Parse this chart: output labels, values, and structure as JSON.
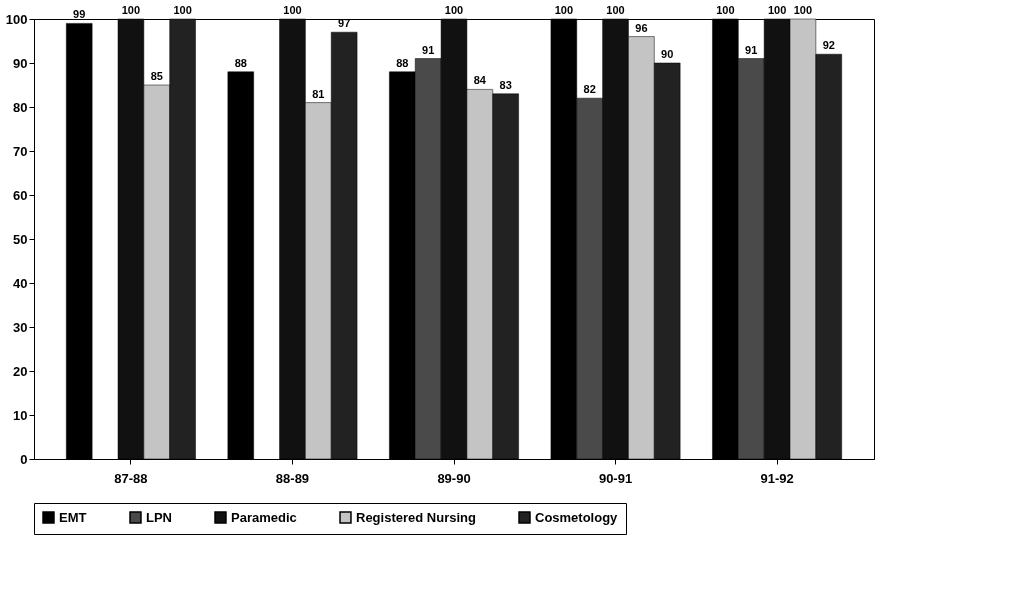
{
  "chart_data": {
    "type": "bar",
    "categories": [
      "87-88",
      "88-89",
      "89-90",
      "90-91",
      "91-92"
    ],
    "series": [
      {
        "name": "EMT",
        "color": "#000000",
        "values": [
          99,
          88,
          88,
          100,
          100
        ]
      },
      {
        "name": "LPN",
        "color": "#4a4a4a",
        "values": [
          null,
          null,
          91,
          82,
          91
        ]
      },
      {
        "name": "Paramedic",
        "color": "#111111",
        "values": [
          100,
          100,
          100,
          100,
          100
        ]
      },
      {
        "name": "Registered Nursing",
        "color": "#c4c4c4",
        "values": [
          85,
          81,
          84,
          96,
          100
        ]
      },
      {
        "name": "Cosmetology",
        "color": "#222222",
        "values": [
          100,
          97,
          83,
          90,
          92
        ]
      }
    ],
    "ylim": [
      0,
      100
    ],
    "yticks": [
      0,
      10,
      20,
      30,
      40,
      50,
      60,
      70,
      80,
      90,
      100
    ],
    "grid": false,
    "legend": "bottom",
    "data_labels": true
  }
}
